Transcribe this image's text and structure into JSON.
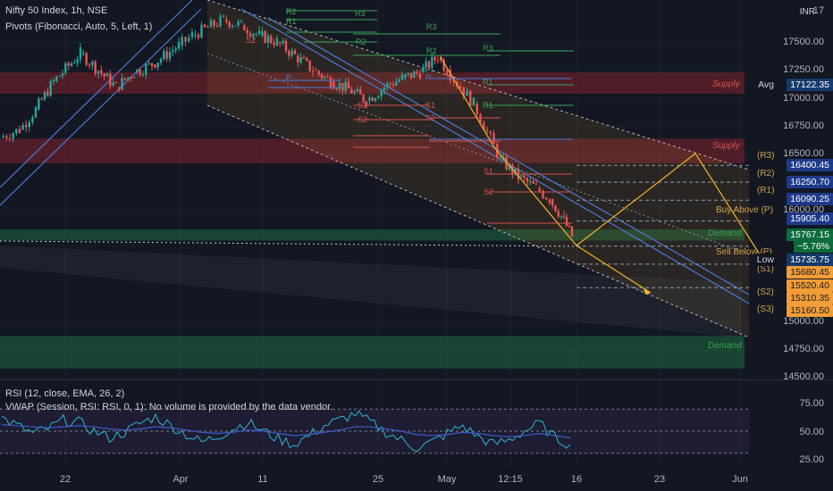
{
  "header": {
    "symbol_line": "Nifty 50 Index, 1h, NSE",
    "indicator_line": "Pivots (Fibonacci, Auto, 5, Left, 1)",
    "currency": "INR"
  },
  "rsi_pane": {
    "title": "RSI (12, close, EMA, 26, 2)",
    "vwap_note": "VWAP (Session, RSI: RSI, 0, 1): No volume is provided by the data vendor.",
    "ticks": [
      "75.00",
      "50.00",
      "25.00"
    ]
  },
  "price_axis": {
    "ticks": [
      "17500.00",
      "17250.00",
      "17000.00",
      "16750.00",
      "16500.00",
      "16000.00",
      "15000.00",
      "14750.00",
      "14500.00"
    ],
    "top_partial": "17"
  },
  "badges": {
    "avg_label": "Avg",
    "avg": "17122.35",
    "r3": "16400.45",
    "r2": "16250.70",
    "r1": "16090.25",
    "p": "15905.40",
    "last": "15767.15",
    "change": "−5.76%",
    "low_label": "Low",
    "low": "15735.75",
    "s1": "15680.45",
    "s2": "15520.40",
    "s3": "15310.35",
    "s3b": "15160.50"
  },
  "zones": {
    "supply": "Supply",
    "demand": "Demand"
  },
  "level_labels": {
    "r3": "(R3)",
    "r2": "(R2)",
    "r1": "(R1)",
    "buy": "Buy Above (P)",
    "sell": "Sell Below (P)",
    "s1": "(S1)",
    "s2": "(S2)",
    "s3": "(S3)"
  },
  "pivot_marks": [
    "R3",
    "R2",
    "R1",
    "P",
    "S1",
    "S2"
  ],
  "time_axis": {
    "labels": [
      "22",
      "Apr",
      "11",
      "25",
      "May",
      "12:15",
      "16",
      "23",
      "Jun"
    ]
  },
  "chart_data": [
    {
      "type": "candlestick",
      "title": "Nifty 50 Index, 1h, NSE",
      "ylabel": "INR",
      "ylim": [
        14400,
        17700
      ],
      "x": [
        "22",
        "Apr",
        "11",
        "25",
        "May",
        "12:15",
        "16",
        "23",
        "Jun"
      ],
      "close_path": [
        16650,
        16720,
        16900,
        17150,
        17400,
        17250,
        17100,
        17230,
        17300,
        17470,
        17560,
        17700,
        17650,
        17560,
        17500,
        17380,
        17250,
        17150,
        17080,
        16980,
        17100,
        17180,
        17230,
        17370,
        17250,
        17100,
        16950,
        16700,
        16450,
        16300,
        16200,
        16100,
        15950,
        15767.15
      ],
      "annotations": {
        "avg": 17122.35,
        "low": 15735.75,
        "change_pct": -5.76
      },
      "fib_pivots": {
        "R3": 16400.45,
        "R2": 16250.7,
        "R1": 16090.25,
        "P": 15905.4,
        "S1": 15680.45,
        "S2": 15520.4,
        "S3": 15310.35,
        "S3b": 15160.5
      },
      "supply_zones": [
        [
          17040,
          17230
        ],
        [
          16420,
          16640
        ]
      ],
      "demand_zones": [
        [
          15730,
          15830
        ],
        [
          14590,
          14880
        ]
      ]
    },
    {
      "type": "line",
      "title": "RSI (12, close, EMA, 26, 2)",
      "ylim": [
        15,
        95
      ],
      "levels": [
        70,
        50,
        30
      ],
      "series": [
        {
          "values": [
            62,
            55,
            48,
            52,
            60,
            58,
            50,
            44,
            49,
            57,
            63,
            55,
            47,
            40,
            45,
            52,
            58,
            50,
            43,
            38,
            46,
            55,
            60,
            66,
            58,
            49,
            42,
            35,
            40,
            48,
            55,
            45,
            38,
            42,
            50,
            57,
            44,
            38
          ]
        },
        {
          "values": [
            56,
            55,
            54,
            53,
            54,
            55,
            54,
            52,
            51,
            52,
            54,
            53,
            51,
            49,
            48,
            49,
            51,
            50,
            48,
            46,
            47,
            49,
            51,
            54,
            54,
            52,
            50,
            47,
            46,
            47,
            49,
            48,
            46,
            45,
            46,
            48,
            46,
            44
          ]
        }
      ]
    }
  ]
}
